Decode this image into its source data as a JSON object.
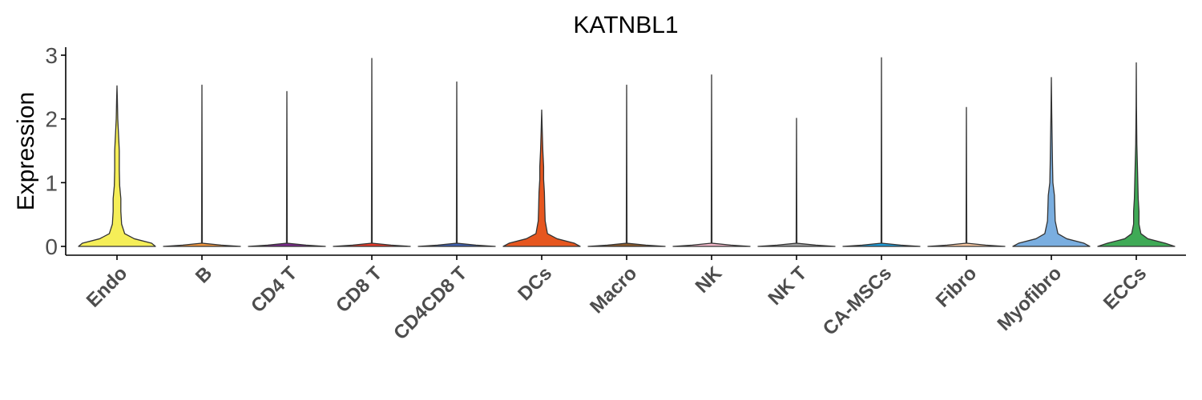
{
  "chart_data": {
    "type": "violin",
    "title": "KATNBL1",
    "xlabel": "",
    "ylabel": "Expression",
    "ylim": [
      -0.12,
      3.1
    ],
    "yticks": [
      "0",
      "1",
      "2",
      "3"
    ],
    "grid": false,
    "legend": "none",
    "categories": [
      "Endo",
      "B",
      "CD4 T",
      "CD8 T",
      "CD4CD8 T",
      "DCs",
      "Macro",
      "NK",
      "NK T",
      "CA-MSCs",
      "Fibro",
      "Myofibro",
      "ECCs"
    ],
    "colors": [
      "#F5EE58",
      "#F1963E",
      "#7A2A8A",
      "#E43A2A",
      "#3F5FAE",
      "#E6561F",
      "#8B5A2B",
      "#F3B7C9",
      "#9E9E9E",
      "#1E9AD6",
      "#F6C6A0",
      "#7AAEE0",
      "#3FAA56"
    ],
    "max_values": [
      2.52,
      2.53,
      2.43,
      2.95,
      2.58,
      2.14,
      2.53,
      2.69,
      2.01,
      2.96,
      2.18,
      2.65,
      2.88
    ],
    "density_profiles": [
      [
        [
          0,
          1.0
        ],
        [
          0.05,
          0.9
        ],
        [
          0.12,
          0.45
        ],
        [
          0.2,
          0.2
        ],
        [
          0.35,
          0.12
        ],
        [
          0.55,
          0.1
        ],
        [
          0.75,
          0.1
        ],
        [
          0.95,
          0.07
        ],
        [
          1.2,
          0.06
        ],
        [
          1.5,
          0.06
        ],
        [
          1.75,
          0.04
        ],
        [
          2.0,
          0.02
        ],
        [
          2.3,
          0.01
        ],
        [
          2.52,
          0
        ]
      ],
      [
        [
          0,
          1.0
        ],
        [
          0.02,
          0.5
        ],
        [
          0.05,
          0.01
        ],
        [
          2.53,
          0
        ]
      ],
      [
        [
          0,
          1.0
        ],
        [
          0.02,
          0.5
        ],
        [
          0.05,
          0.01
        ],
        [
          2.43,
          0
        ]
      ],
      [
        [
          0,
          1.0
        ],
        [
          0.02,
          0.5
        ],
        [
          0.05,
          0.01
        ],
        [
          2.95,
          0
        ]
      ],
      [
        [
          0,
          1.0
        ],
        [
          0.02,
          0.5
        ],
        [
          0.05,
          0.01
        ],
        [
          2.58,
          0
        ]
      ],
      [
        [
          0,
          1.0
        ],
        [
          0.05,
          0.85
        ],
        [
          0.12,
          0.4
        ],
        [
          0.2,
          0.15
        ],
        [
          0.4,
          0.09
        ],
        [
          0.6,
          0.08
        ],
        [
          0.85,
          0.07
        ],
        [
          1.05,
          0.05
        ],
        [
          1.25,
          0.05
        ],
        [
          1.5,
          0.03
        ],
        [
          1.8,
          0.015
        ],
        [
          2.14,
          0
        ]
      ],
      [
        [
          0,
          1.0
        ],
        [
          0.02,
          0.5
        ],
        [
          0.05,
          0.01
        ],
        [
          2.53,
          0
        ]
      ],
      [
        [
          0,
          1.0
        ],
        [
          0.02,
          0.5
        ],
        [
          0.05,
          0.01
        ],
        [
          2.69,
          0
        ]
      ],
      [
        [
          0,
          1.0
        ],
        [
          0.02,
          0.5
        ],
        [
          0.05,
          0.01
        ],
        [
          2.01,
          0
        ]
      ],
      [
        [
          0,
          1.0
        ],
        [
          0.02,
          0.5
        ],
        [
          0.05,
          0.01
        ],
        [
          2.96,
          0
        ]
      ],
      [
        [
          0,
          1.0
        ],
        [
          0.02,
          0.5
        ],
        [
          0.05,
          0.01
        ],
        [
          2.18,
          0
        ]
      ],
      [
        [
          0,
          1.0
        ],
        [
          0.05,
          0.85
        ],
        [
          0.12,
          0.4
        ],
        [
          0.2,
          0.17
        ],
        [
          0.4,
          0.1
        ],
        [
          0.6,
          0.09
        ],
        [
          0.8,
          0.08
        ],
        [
          1.0,
          0.04
        ],
        [
          1.3,
          0.03
        ],
        [
          1.7,
          0.02
        ],
        [
          2.1,
          0.01
        ],
        [
          2.65,
          0
        ]
      ],
      [
        [
          0,
          1.0
        ],
        [
          0.05,
          0.75
        ],
        [
          0.12,
          0.3
        ],
        [
          0.2,
          0.12
        ],
        [
          0.35,
          0.07
        ],
        [
          0.55,
          0.07
        ],
        [
          0.75,
          0.05
        ],
        [
          1.0,
          0.04
        ],
        [
          1.25,
          0.03
        ],
        [
          1.6,
          0.015
        ],
        [
          2.2,
          0.005
        ],
        [
          2.88,
          0
        ]
      ]
    ]
  }
}
